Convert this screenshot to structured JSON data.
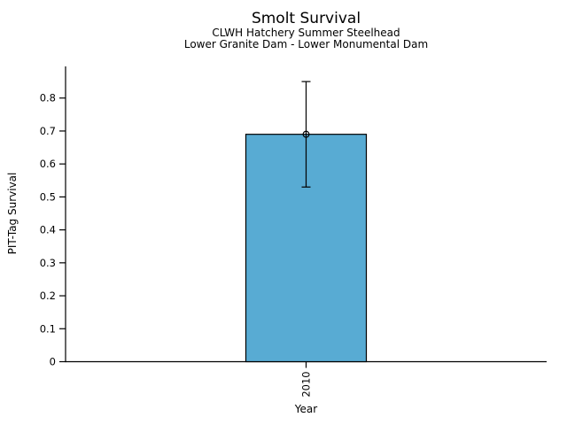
{
  "chart_data": {
    "type": "bar",
    "title": "Smolt Survival",
    "subtitle1": "CLWH Hatchery Summer Steelhead",
    "subtitle2": "Lower Granite Dam - Lower Monumental Dam",
    "xlabel": "Year",
    "ylabel": "PIT-Tag Survival",
    "categories": [
      "2010"
    ],
    "values": [
      0.69
    ],
    "error_low": [
      0.53
    ],
    "error_high": [
      0.85
    ],
    "yticks": [
      0,
      0.1,
      0.2,
      0.3,
      0.4,
      0.5,
      0.6,
      0.7,
      0.8
    ],
    "ytick_labels": [
      "0",
      "0.1",
      "0.2",
      "0.3",
      "0.4",
      "0.5",
      "0.6",
      "0.7",
      "0.8"
    ],
    "ylim": [
      0,
      0.896
    ],
    "grid": false,
    "legend": null,
    "bar_color": "#58abd3",
    "edge_color": "#000000",
    "text_color": "#000000",
    "background_color": "#ffffff"
  }
}
